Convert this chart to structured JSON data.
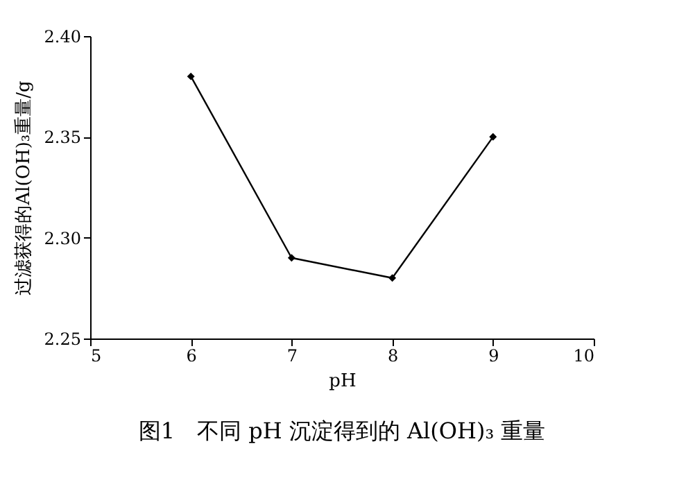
{
  "chart_data": {
    "type": "line",
    "title": "图1　不同 pH 沉淀得到的 Al(OH)₃ 重量",
    "xlabel": "pH",
    "ylabel": "过滤获得的Al(OH)₃重量/g",
    "x": [
      6,
      7,
      8,
      9
    ],
    "series": [
      {
        "color": "#000000",
        "values": [
          2.38,
          2.29,
          2.28,
          2.35
        ]
      }
    ],
    "xlim": [
      5,
      10
    ],
    "xticks": [
      5,
      6,
      7,
      8,
      9,
      10
    ],
    "ylim": [
      2.25,
      2.4
    ],
    "yticks": [
      2.25,
      {
        "value": 2.3,
        "label": "2.30"
      },
      2.35,
      {
        "value": 2.4,
        "label": "2.40"
      }
    ],
    "grid": false,
    "marker": "diamond",
    "line_style": "solid"
  }
}
